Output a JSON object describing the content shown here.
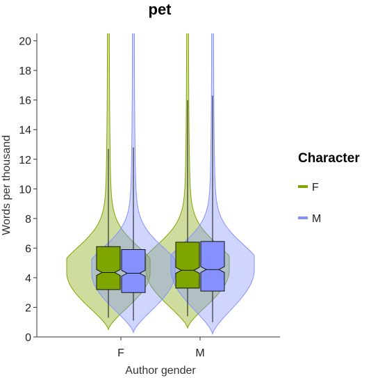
{
  "chart_data": {
    "type": "violin",
    "title": "pet",
    "xlabel": "Author gender",
    "ylabel": "Words per thousand",
    "categories": [
      "F",
      "M"
    ],
    "ylim": [
      0,
      20.5
    ],
    "yticks": [
      0,
      2,
      4,
      6,
      8,
      10,
      12,
      14,
      16,
      18,
      20
    ],
    "grid": false,
    "legend": {
      "title": "Character",
      "placement": "right",
      "entries": [
        {
          "label": "F",
          "color": "#7fa500"
        },
        {
          "label": "M",
          "color": "#8491ff"
        }
      ]
    },
    "series": [
      {
        "name": "F",
        "color": "#7fa500",
        "groups": [
          {
            "category": "F",
            "whisker_low": 1.3,
            "q1": 3.2,
            "median": 4.35,
            "q3": 6.1,
            "whisker_high": 12.7,
            "notch_low": 4.15,
            "notch_high": 4.55
          },
          {
            "category": "M",
            "whisker_low": 1.4,
            "q1": 3.3,
            "median": 4.5,
            "q3": 6.4,
            "whisker_high": 16.0,
            "notch_low": 4.3,
            "notch_high": 4.7
          }
        ]
      },
      {
        "name": "M",
        "color": "#8491ff",
        "groups": [
          {
            "category": "F",
            "whisker_low": 1.1,
            "q1": 3.0,
            "median": 4.3,
            "q3": 5.9,
            "whisker_high": 12.8,
            "notch_low": 4.1,
            "notch_high": 4.5
          },
          {
            "category": "M",
            "whisker_low": 1.0,
            "q1": 3.1,
            "median": 4.55,
            "q3": 6.45,
            "whisker_high": 16.3,
            "notch_low": 4.35,
            "notch_high": 4.75
          }
        ]
      }
    ]
  }
}
